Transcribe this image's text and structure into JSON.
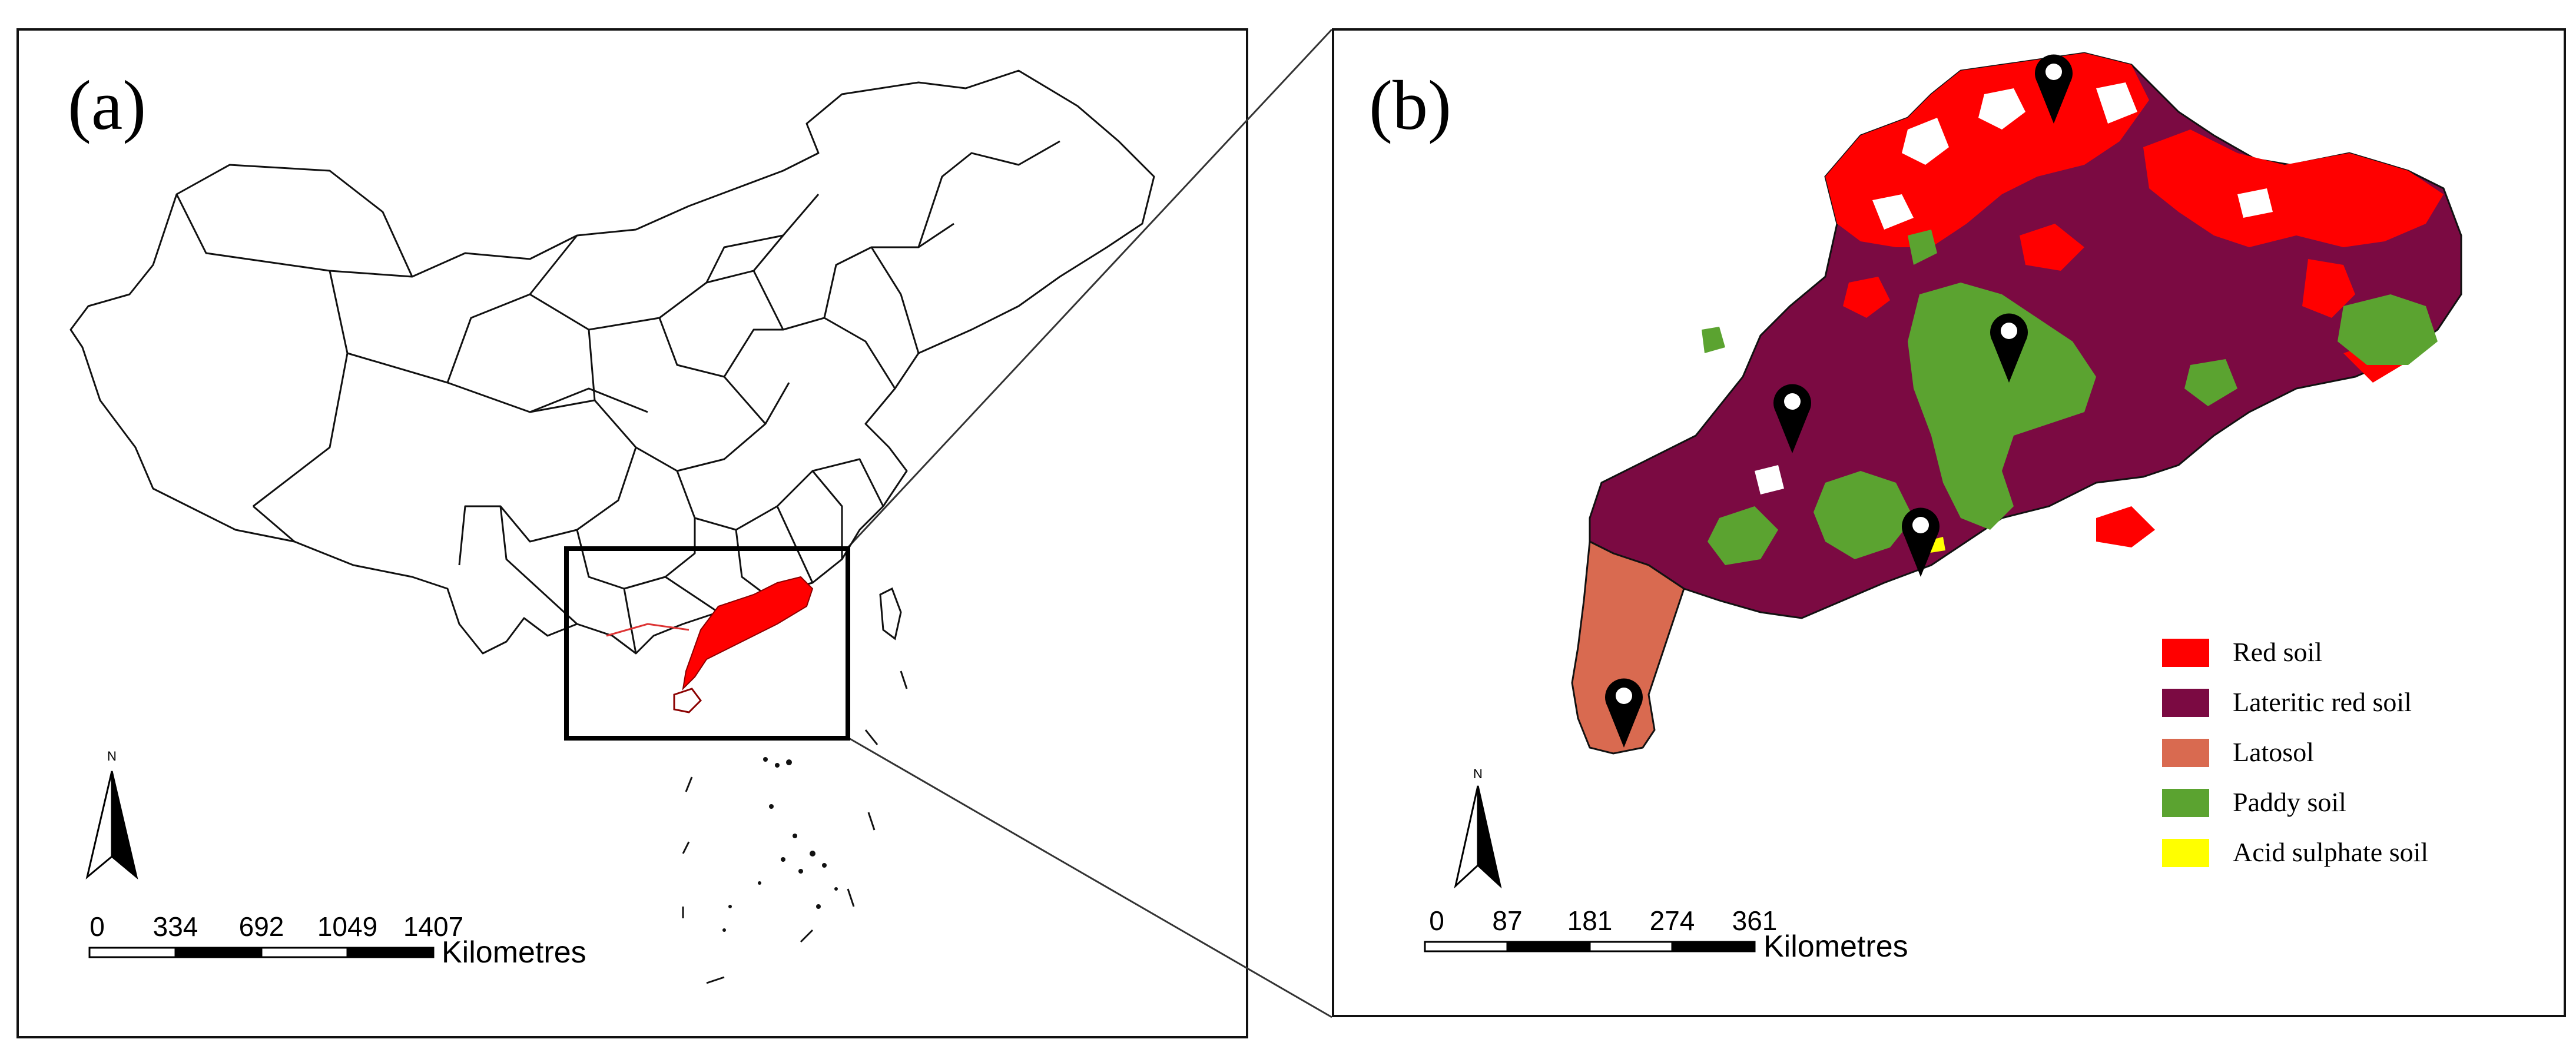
{
  "panel_a": {
    "label": "(a)",
    "scale": {
      "ticks": [
        "0",
        "334",
        "692",
        "1049",
        "1407"
      ],
      "unit": "Kilometres"
    },
    "north_label": "N",
    "highlight_color": "#ff0000"
  },
  "panel_b": {
    "label": "(b)",
    "scale": {
      "ticks": [
        "0",
        "87",
        "181",
        "274",
        "361"
      ],
      "unit": "Kilometres"
    },
    "north_label": "N",
    "legend": [
      {
        "label": "Red soil",
        "color": "#ff0000"
      },
      {
        "label": "Lateritic red soil",
        "color": "#7b0a42"
      },
      {
        "label": "Latosol",
        "color": "#d96a50"
      },
      {
        "label": "Paddy soil",
        "color": "#5ba330"
      },
      {
        "label": "Acid sulphate soil",
        "color": "#ffff00"
      }
    ],
    "marker_icon": "map-pin-icon"
  }
}
